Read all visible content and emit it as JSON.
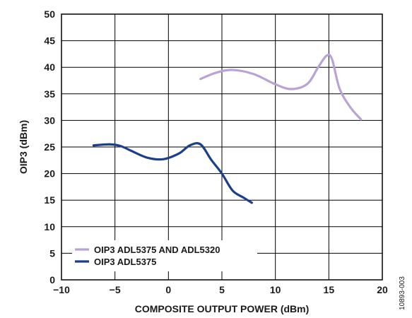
{
  "chart_data": {
    "type": "line",
    "title": "",
    "xlabel": "COMPOSITE OUTPUT POWER (dBm)",
    "ylabel": "OIP3 (dBm)",
    "xlim": [
      -10,
      20
    ],
    "ylim": [
      0,
      50
    ],
    "xticks": [
      -10,
      -5,
      0,
      5,
      10,
      15,
      20
    ],
    "yticks": [
      0,
      5,
      10,
      15,
      20,
      25,
      30,
      35,
      40,
      45,
      50
    ],
    "xtick_labels": [
      "−10",
      "−5",
      "0",
      "5",
      "10",
      "15",
      "20"
    ],
    "ytick_labels": [
      "0",
      "5",
      "10",
      "15",
      "20",
      "25",
      "30",
      "35",
      "40",
      "45",
      "50"
    ],
    "grid": true,
    "legend_position": "bottom-left",
    "figure_id": "10893-003",
    "series": [
      {
        "name": "OIP3 ADL5375 AND ADL5320",
        "color": "#b9a3d6",
        "x": [
          3.0,
          4.5,
          6.0,
          8.0,
          10.0,
          11.5,
          13.0,
          14.0,
          14.8,
          15.3,
          16.0,
          17.0,
          18.0
        ],
        "y": [
          37.8,
          39.0,
          39.5,
          38.7,
          36.8,
          35.9,
          36.9,
          40.0,
          42.2,
          41.5,
          36.0,
          32.5,
          30.2
        ]
      },
      {
        "name": "OIP3 ADL5375",
        "color": "#1c3f8c",
        "x": [
          -7.0,
          -5.5,
          -4.5,
          -3.5,
          -2.0,
          -0.5,
          1.0,
          2.0,
          3.0,
          4.0,
          5.0,
          6.0,
          7.0,
          7.8
        ],
        "y": [
          25.3,
          25.5,
          25.2,
          24.3,
          23.0,
          22.7,
          23.8,
          25.3,
          25.5,
          22.6,
          20.0,
          16.8,
          15.5,
          14.5
        ]
      }
    ]
  }
}
